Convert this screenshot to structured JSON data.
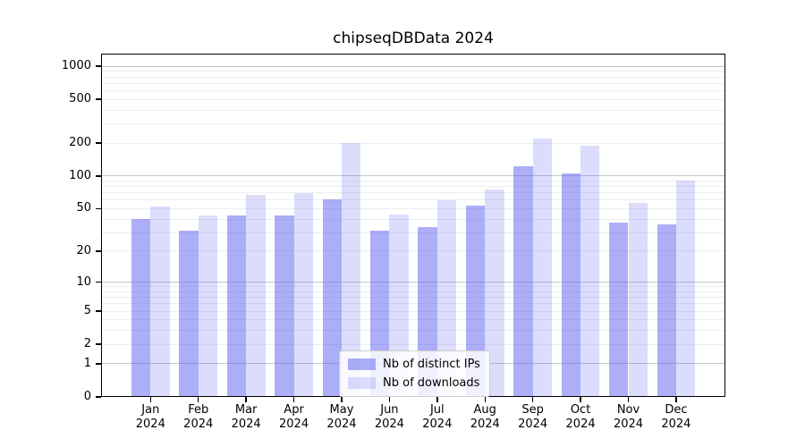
{
  "title": "chipseqDBData 2024",
  "legend": {
    "items": [
      {
        "label": "Nb of distinct IPs",
        "color": "rgba(95,100,240,0.52)"
      },
      {
        "label": "Nb of downloads",
        "color": "rgba(95,100,240,0.22)"
      }
    ],
    "position": "lower center"
  },
  "axes": {
    "y_ticks": [
      0,
      1,
      2,
      5,
      10,
      20,
      50,
      100,
      200,
      500,
      1000
    ],
    "y_scale": "log10(value+1)",
    "x_second_line": "2024"
  },
  "colors": {
    "bar_distinct_ips": "rgba(95,100,240,0.52)",
    "bar_downloads": "rgba(95,100,240,0.22)",
    "grid_major": "#c6c6c6",
    "grid_minor": "#ededed",
    "axis": "#000000",
    "background": "#ffffff",
    "legend_border": "#cccccc"
  },
  "chart_data": {
    "type": "bar",
    "title": "chipseqDBData 2024",
    "categories": [
      "Jan 2024",
      "Feb 2024",
      "Mar 2024",
      "Apr 2024",
      "May 2024",
      "Jun 2024",
      "Jul 2024",
      "Aug 2024",
      "Sep 2024",
      "Oct 2024",
      "Nov 2024",
      "Dec 2024"
    ],
    "series": [
      {
        "name": "Nb of distinct IPs",
        "values": [
          40,
          31,
          43,
          43,
          61,
          31,
          34,
          53,
          123,
          105,
          37,
          36
        ]
      },
      {
        "name": "Nb of downloads",
        "values": [
          52,
          43,
          67,
          70,
          199,
          44,
          60,
          75,
          219,
          190,
          57,
          90
        ]
      }
    ],
    "xlabel": "",
    "ylabel": "",
    "ylim": [
      0,
      1300
    ],
    "yticks": [
      0,
      1,
      2,
      5,
      10,
      20,
      50,
      100,
      200,
      500,
      1000
    ],
    "yscale": "symlog-like: y position proportional to log10(value+1), 0 sits on baseline",
    "grid": "horizontal; major lines at 1,10,100,1000; minor lines at 2-9, 20-90, 200-900",
    "legend_position": "lower center inside plot"
  }
}
